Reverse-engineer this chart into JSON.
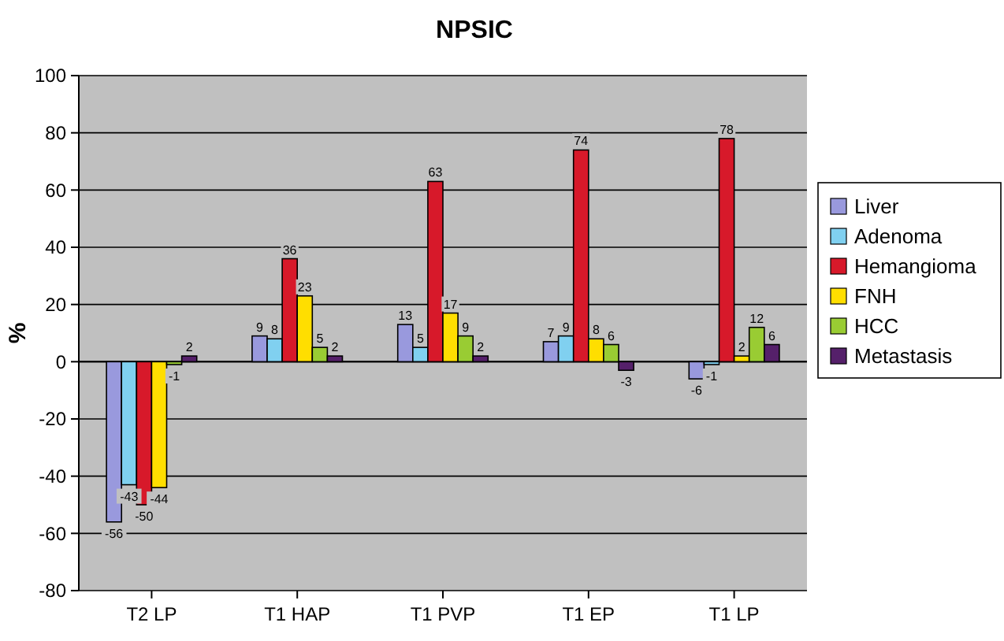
{
  "chart_data": {
    "type": "bar",
    "title": "NPSIC",
    "ylabel": "%",
    "categories": [
      "T2 LP",
      "T1 HAP",
      "T1 PVP",
      "T1 EP",
      "T1 LP"
    ],
    "series": [
      {
        "name": "Liver",
        "color": "#9999dd",
        "values": [
          -56,
          9,
          13,
          7,
          -6
        ]
      },
      {
        "name": "Adenoma",
        "color": "#80d0f0",
        "values": [
          -43,
          8,
          5,
          9,
          -1
        ]
      },
      {
        "name": "Hemangioma",
        "color": "#d7192a",
        "values": [
          -50,
          36,
          63,
          74,
          78
        ]
      },
      {
        "name": "FNH",
        "color": "#ffde00",
        "values": [
          -44,
          23,
          17,
          8,
          2
        ]
      },
      {
        "name": "HCC",
        "color": "#99cc33",
        "values": [
          -1,
          5,
          9,
          6,
          12
        ]
      },
      {
        "name": "Metastasis",
        "color": "#55206a",
        "values": [
          2,
          2,
          2,
          -3,
          6
        ]
      }
    ],
    "ylim": [
      -80,
      100
    ],
    "yticks": [
      -80,
      -60,
      -40,
      -20,
      0,
      20,
      40,
      60,
      80,
      100
    ],
    "grid": "y",
    "legend": "right",
    "data_labels": true
  }
}
